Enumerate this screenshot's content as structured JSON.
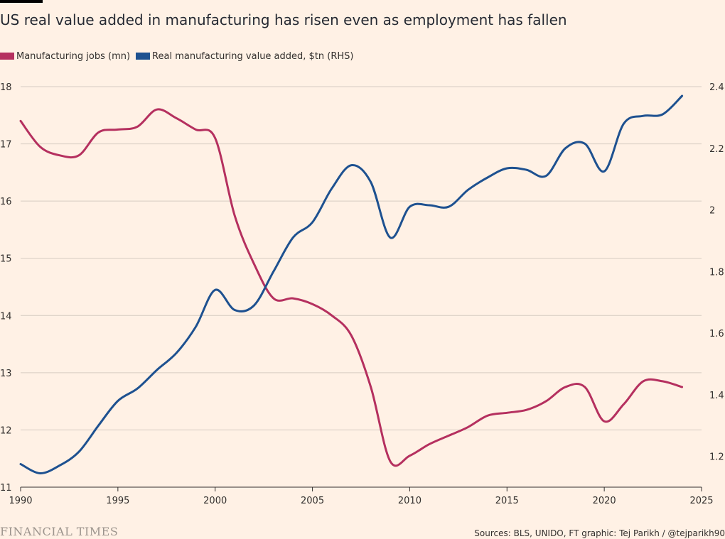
{
  "header": {
    "title": "US real value added in manufacturing has risen even as employment has fallen"
  },
  "colors": {
    "background": "#fff1e5",
    "jobs": "#b5305f",
    "value_added": "#1e5190",
    "grid": "#d6ccc2",
    "axis": "#33302e"
  },
  "chart_data": {
    "type": "line",
    "title": "US real value added in manufacturing has risen even as employment has fallen",
    "xlim": [
      1990,
      2025
    ],
    "x_ticks": [
      "1990",
      "1995",
      "2000",
      "2005",
      "2010",
      "2015",
      "2020",
      "2025"
    ],
    "y_left": {
      "lim": [
        11,
        18
      ],
      "ticks": [
        "11",
        "12",
        "13",
        "14",
        "15",
        "16",
        "17",
        "18"
      ]
    },
    "y_right": {
      "lim": [
        1.1,
        2.4
      ],
      "ticks": [
        "1.2",
        "1.4",
        "1.6",
        "1.8",
        "2",
        "2.2",
        "2.4"
      ]
    },
    "grid": true,
    "legend_position": "top-left",
    "series": [
      {
        "name": "Manufacturing jobs (mn)",
        "axis": "left",
        "color": "#b5305f",
        "x": [
          1990,
          1991,
          1992,
          1993,
          1994,
          1995,
          1996,
          1997,
          1998,
          1999,
          2000,
          2001,
          2002,
          2003,
          2004,
          2005,
          2006,
          2007,
          2008,
          2009,
          2010,
          2011,
          2012,
          2013,
          2014,
          2015,
          2016,
          2017,
          2018,
          2019,
          2020,
          2021,
          2022,
          2023,
          2024
        ],
        "y": [
          17.4,
          16.95,
          16.8,
          16.8,
          17.2,
          17.25,
          17.3,
          17.6,
          17.45,
          17.25,
          17.1,
          15.75,
          14.9,
          14.3,
          14.3,
          14.2,
          14.0,
          13.65,
          12.75,
          11.45,
          11.55,
          11.75,
          11.9,
          12.05,
          12.25,
          12.3,
          12.35,
          12.5,
          12.75,
          12.75,
          12.15,
          12.45,
          12.85,
          12.85,
          12.75
        ]
      },
      {
        "name": "Real manufacturing value added, $tn (RHS)",
        "axis": "right",
        "color": "#1e5190",
        "x": [
          1990,
          1991,
          1992,
          1993,
          1994,
          1995,
          1996,
          1997,
          1998,
          1999,
          2000,
          2001,
          2002,
          2003,
          2004,
          2005,
          2006,
          2007,
          2008,
          2009,
          2010,
          2011,
          2012,
          2013,
          2014,
          2015,
          2016,
          2017,
          2018,
          2019,
          2020,
          2021,
          2022,
          2023,
          2024
        ],
        "y": [
          1.175,
          1.145,
          1.17,
          1.215,
          1.3,
          1.38,
          1.42,
          1.48,
          1.535,
          1.62,
          1.74,
          1.675,
          1.69,
          1.8,
          1.91,
          1.96,
          2.07,
          2.145,
          2.09,
          1.91,
          2.01,
          2.015,
          2.01,
          2.065,
          2.105,
          2.135,
          2.13,
          2.11,
          2.2,
          2.215,
          2.125,
          2.28,
          2.305,
          2.31,
          2.37
        ]
      }
    ]
  },
  "footer": {
    "logo_text": "FINANCIAL TIMES",
    "source": "Sources: BLS, UNIDO, FT graphic: Tej Parikh / @tejparikh90"
  }
}
